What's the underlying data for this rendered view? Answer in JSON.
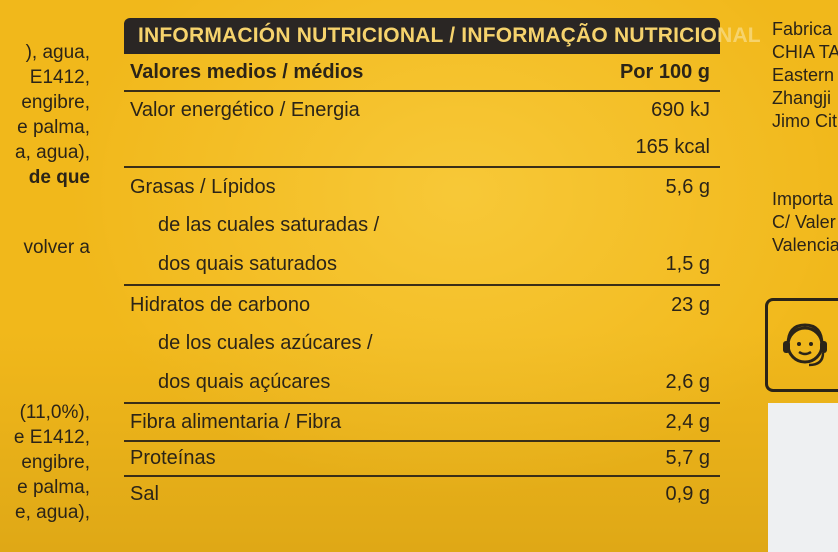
{
  "left_column_top": [
    "), agua,",
    "E1412,",
    "engibre,",
    "e palma,",
    "a, agua),",
    "de que",
    "volver a"
  ],
  "left_column_bottom": [
    "(11,0%),",
    "e E1412,",
    "engibre,",
    "e palma,",
    "e, agua),"
  ],
  "right_column_top": [
    "Fabrica",
    "CHIA TA",
    "Eastern",
    "Zhangji",
    "Jimo Cit"
  ],
  "right_column_bottom": [
    "Importa",
    "C/ Valer",
    "Valencia"
  ],
  "table": {
    "title": "INFORMACIÓN NUTRICIONAL / INFORMAÇÃO NUTRICIONAL",
    "col_label": "Valores medios / médios",
    "col_value": "Por 100 g",
    "rows": [
      {
        "label": "Valor energético / Energia",
        "value": "690 kJ"
      },
      {
        "label": "",
        "value": "165 kcal"
      },
      {
        "label": "Grasas / Lípidos",
        "value": "5,6 g"
      },
      {
        "label": "de las cuales saturadas /",
        "value": ""
      },
      {
        "label": "dos quais saturados",
        "value": "1,5 g"
      },
      {
        "label": "Hidratos de carbono",
        "value": "23 g"
      },
      {
        "label": "de los cuales azúcares /",
        "value": ""
      },
      {
        "label": "dos quais açúcares",
        "value": "2,6 g"
      },
      {
        "label": "Fibra alimentaria / Fibra",
        "value": "2,4 g"
      },
      {
        "label": "Proteínas",
        "value": "5,7 g"
      },
      {
        "label": "Sal",
        "value": "0,9 g"
      }
    ]
  },
  "icon": "customer-service-icon"
}
